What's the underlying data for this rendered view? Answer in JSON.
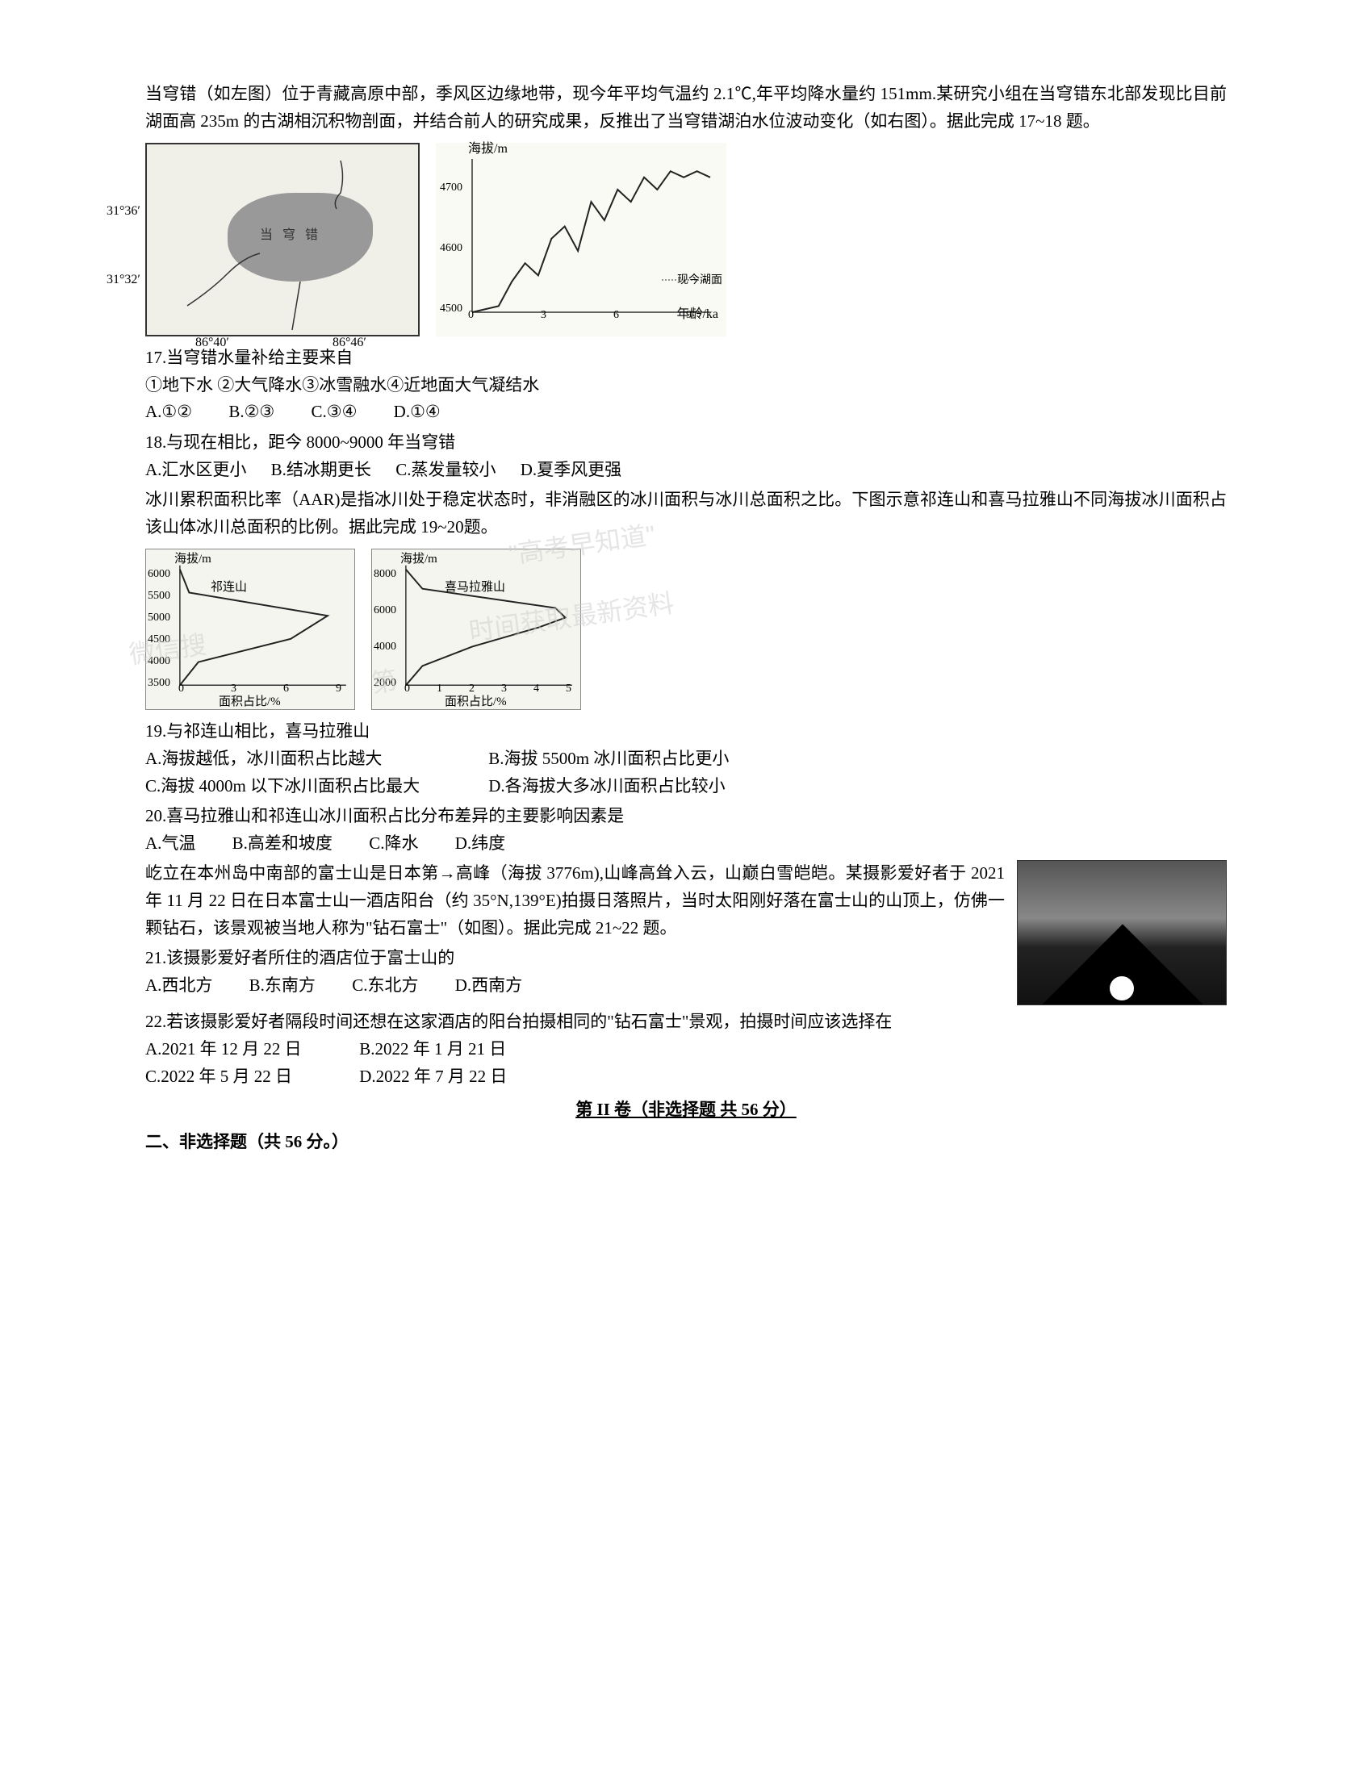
{
  "intro1": "当穹错（如左图）位于青藏高原中部，季风区边缘地带，现今年平均气温约 2.1℃,年平均降水量约 151mm.某研究小组在当穹错东北部发现比目前湖面高 235m 的古湖相沉积物剖面，并结合前人的研究成果，反推出了当穹错湖泊水位波动变化（如右图）。据此完成 17~18 题。",
  "map": {
    "lat1": "31°36′",
    "lat2": "31°32′",
    "lon1": "86°40′",
    "lon2": "86°46′",
    "lake_label": "当 穹 错"
  },
  "lake_chart": {
    "ylabel": "海拔/m",
    "xlabel": "年龄/ka",
    "yticks": [
      "4500",
      "4600",
      "4700"
    ],
    "xticks": [
      "0",
      "3",
      "6",
      "9"
    ],
    "note": "现今湖面",
    "data_points": [
      [
        0,
        4500
      ],
      [
        1,
        4510
      ],
      [
        1.5,
        4550
      ],
      [
        2,
        4580
      ],
      [
        2.5,
        4560
      ],
      [
        3,
        4620
      ],
      [
        3.5,
        4640
      ],
      [
        4,
        4600
      ],
      [
        4.5,
        4680
      ],
      [
        5,
        4650
      ],
      [
        5.5,
        4700
      ],
      [
        6,
        4680
      ],
      [
        6.5,
        4720
      ],
      [
        7,
        4700
      ],
      [
        7.5,
        4730
      ],
      [
        8,
        4720
      ],
      [
        8.5,
        4730
      ],
      [
        9,
        4720
      ]
    ],
    "line_color": "#222",
    "line_width": 2
  },
  "q17": {
    "stem": "17.当穹错水量补给主要来自",
    "items": "①地下水 ②大气降水③冰雪融水④近地面大气凝结水",
    "optA": "A.①②",
    "optB": "B.②③",
    "optC": "C.③④",
    "optD": "D.①④"
  },
  "q18": {
    "stem": "18.与现在相比，距今 8000~9000 年当穹错",
    "optA": "A.汇水区更小",
    "optB": "B.结冰期更长",
    "optC": "C.蒸发量较小",
    "optD": "D.夏季风更强"
  },
  "intro2": "冰川累积面积比率（AAR)是指冰川处于稳定状态时，非消融区的冰川面积与冰川总面积之比。下图示意祁连山和喜马拉雅山不同海拔冰川面积占该山体冰川总面积的比例。据此完成 19~20题。",
  "glacier_chart1": {
    "title": "祁连山",
    "ylabel": "海拔/m",
    "xlabel": "面积占比/%",
    "yticks": [
      "3500",
      "4000",
      "4500",
      "5000",
      "5500",
      "6000"
    ],
    "xticks": [
      "0",
      "3",
      "6",
      "9"
    ],
    "data_points": [
      [
        0,
        6000
      ],
      [
        0.5,
        5500
      ],
      [
        8,
        5000
      ],
      [
        6,
        4500
      ],
      [
        1,
        4000
      ],
      [
        0,
        3500
      ]
    ],
    "line_color": "#222",
    "line_width": 2
  },
  "glacier_chart2": {
    "title": "喜马拉雅山",
    "ylabel": "海拔/m",
    "xlabel": "面积占比/%",
    "yticks": [
      "2000",
      "4000",
      "6000",
      "8000"
    ],
    "xticks": [
      "0",
      "1",
      "2",
      "3",
      "4",
      "5"
    ],
    "data_points": [
      [
        0,
        8000
      ],
      [
        0.5,
        7000
      ],
      [
        4.5,
        6000
      ],
      [
        4.8,
        5500
      ],
      [
        4,
        5000
      ],
      [
        2,
        4000
      ],
      [
        0.5,
        3000
      ],
      [
        0,
        2000
      ]
    ],
    "line_color": "#222",
    "line_width": 2
  },
  "watermark1": "微信搜",
  "watermark2": "\"高考早知道\"",
  "watermark3": "时间获取最新资料",
  "watermark4": "第",
  "q19": {
    "stem": "19.与祁连山相比，喜马拉雅山",
    "optA": "A.海拔越低，冰川面积占比越大",
    "optB": "B.海拔 5500m 冰川面积占比更小",
    "optC": "C.海拔 4000m 以下冰川面积占比最大",
    "optD": "D.各海拔大多冰川面积占比较小"
  },
  "q20": {
    "stem": "20.喜马拉雅山和祁连山冰川面积占比分布差异的主要影响因素是",
    "optA": "A.气温",
    "optB": "B.高差和坡度",
    "optC": "C.降水",
    "optD": "D.纬度"
  },
  "intro3": "屹立在本州岛中南部的富士山是日本第→高峰（海拔 3776m),山峰高耸入云，山巅白雪皑皑。某摄影爱好者于 2021 年 11 月 22 日在日本富士山一酒店阳台（约 35°N,139°E)拍摄日落照片，当时太阳刚好落在富士山的山顶上，仿佛一颗钻石，该景观被当地人称为\"钻石富士\"（如图）。据此完成 21~22 题。",
  "q21": {
    "stem": "21.该摄影爱好者所住的酒店位于富士山的",
    "optA": "A.西北方",
    "optB": "B.东南方",
    "optC": "C.东北方",
    "optD": "D.西南方"
  },
  "q22": {
    "stem": "22.若该摄影爱好者隔段时间还想在这家酒店的阳台拍摄相同的\"钻石富士\"景观，拍摄时间应该选择在",
    "optA": "A.2021 年 12 月 22 日",
    "optB": "B.2022 年 1 月 21 日",
    "optC": "C.2022 年 5 月 22 日",
    "optD": "D.2022 年 7 月 22 日"
  },
  "section2_header": "第 II 卷（非选择题 共 56 分）",
  "section2_title": "二、非选择题（共 56 分。）"
}
